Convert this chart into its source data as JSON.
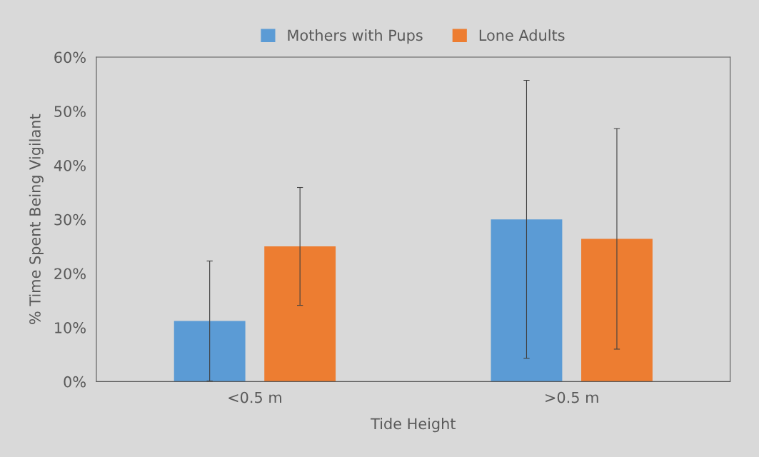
{
  "chart_data": {
    "type": "bar",
    "xlabel": "Tide Height",
    "ylabel": "% Time Spent Being Vigilant",
    "categories": [
      "<0.5 m",
      ">0.5 m"
    ],
    "series": [
      {
        "name": "Mothers with Pups",
        "color": "#5b9bd5",
        "values": [
          11.2,
          30.0
        ],
        "errors": [
          11.1,
          25.7
        ]
      },
      {
        "name": "Lone Adults",
        "color": "#ed7d31",
        "values": [
          25.0,
          26.4
        ],
        "errors": [
          10.9,
          20.4
        ]
      }
    ],
    "ylim": [
      0,
      60
    ],
    "yticks": [
      {
        "value": 0,
        "label": "0%"
      },
      {
        "value": 10,
        "label": "10%"
      },
      {
        "value": 20,
        "label": "20%"
      },
      {
        "value": 30,
        "label": "30%"
      },
      {
        "value": 40,
        "label": "40%"
      },
      {
        "value": 50,
        "label": "50%"
      },
      {
        "value": 60,
        "label": "60%"
      }
    ],
    "legend": "top",
    "grid": false
  }
}
